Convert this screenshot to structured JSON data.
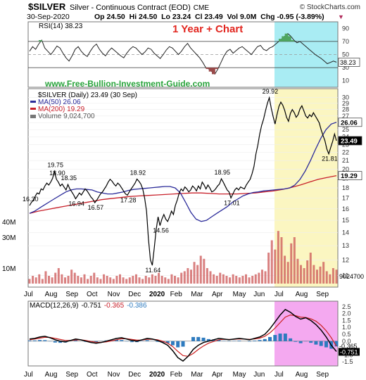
{
  "header": {
    "symbol": "$SILVER",
    "description": "Silver - Continuous Contract (EOD)",
    "exchange": "CME",
    "brand": "© StockCharts.com",
    "date": "30-Sep-2020",
    "quote": "Op 24.50  Hi 24.50  Lo 23.24  Cl 23.49  Vol 9.0M  Chg -0.95 (-3.89%)",
    "chg_arrow": "▼"
  },
  "annotations": {
    "headline": "1 Year + Chart",
    "website": "www.Free-Bullion-Investment-Guide.com"
  },
  "colors": {
    "price": "#000000",
    "ma50": "#2b2b9a",
    "ma200": "#c8202a",
    "volume": "#cc5555",
    "highlight_yellow": "#fbf6c1",
    "highlight_cyan": "#a9ecf3",
    "highlight_pink": "#f4a9f0",
    "rsi_fill": "#4fa560",
    "macd_hist": "#2e7bbf",
    "signal": "#cc1f1f",
    "headline": "#e2261f",
    "website": "#27a33a"
  },
  "chart_data": [
    {
      "type": "line",
      "panel": "RSI",
      "legend": [
        "RSI(14) 38.23"
      ],
      "current": 38.23,
      "ylim": [
        0,
        100
      ],
      "yticks": [
        10,
        30,
        50,
        70,
        90
      ],
      "ref_lines": [
        30,
        50,
        70
      ],
      "points": [
        55,
        62,
        58,
        66,
        72,
        60,
        55,
        50,
        56,
        63,
        60,
        52,
        45,
        40,
        48,
        58,
        62,
        55,
        50,
        47,
        55,
        62,
        66,
        58,
        52,
        48,
        55,
        60,
        56,
        52,
        48,
        45,
        52,
        58,
        62,
        60,
        55,
        50,
        54,
        60,
        58,
        52,
        48,
        44,
        50,
        57,
        62,
        60,
        55,
        50,
        55,
        62,
        67,
        60,
        55,
        50,
        45,
        38,
        30,
        28,
        24,
        20,
        28,
        38,
        48,
        55,
        58,
        52,
        56,
        60,
        62,
        58,
        54,
        50,
        56,
        62,
        64,
        58,
        56,
        60,
        62,
        66,
        70,
        74,
        78,
        82,
        78,
        72,
        68,
        70,
        66,
        62,
        58,
        54,
        50,
        47,
        44,
        40,
        36,
        38,
        40,
        38.23
      ]
    },
    {
      "type": "line",
      "panel": "Price",
      "title": "$SILVER (Daily) 23.49 (30 Sep)",
      "x_ticks": [
        "Jul",
        "Aug",
        "Sep",
        "Oct",
        "Nov",
        "Dec",
        "2020",
        "Feb",
        "Mar",
        "Apr",
        "May",
        "Jun",
        "Jul",
        "Aug",
        "Sep"
      ],
      "ylim": [
        10.5,
        31
      ],
      "yticks": [
        11,
        12,
        13,
        14,
        15,
        16,
        17,
        18,
        19,
        20,
        21,
        22,
        23,
        24,
        25,
        26,
        27,
        28,
        29,
        30
      ],
      "price": [
        16.3,
        16.6,
        16.8,
        17.2,
        17.5,
        17.4,
        17.9,
        17.8,
        18.2,
        18.5,
        18.3,
        18.6,
        19.0,
        19.75,
        18.9,
        18.6,
        18.2,
        18.4,
        18.1,
        17.8,
        18.35,
        17.9,
        17.6,
        17.3,
        16.94,
        17.2,
        17.5,
        17.3,
        17.6,
        17.9,
        17.7,
        17.4,
        17.1,
        16.9,
        16.57,
        16.8,
        17.1,
        17.4,
        17.6,
        17.9,
        18.2,
        18.6,
        18.9,
        18.7,
        18.4,
        18.2,
        18.5,
        18.3,
        18.0,
        17.7,
        17.4,
        17.28,
        17.6,
        17.9,
        18.2,
        18.5,
        18.92,
        18.7,
        18.4,
        17.9,
        17.0,
        15.8,
        13.5,
        12.0,
        11.64,
        12.8,
        14.2,
        15.3,
        14.56,
        15.1,
        15.5,
        15.1,
        14.9,
        15.3,
        15.8,
        15.5,
        16.3,
        16.8,
        17.5,
        17.9,
        17.7,
        18.1,
        17.9,
        17.6,
        17.8,
        18.2,
        18.0,
        17.7,
        18.2,
        17.9,
        18.6,
        18.3,
        17.9,
        18.3,
        18.0,
        17.6,
        17.7,
        17.9,
        18.2,
        18.4,
        18.95,
        18.6,
        18.2,
        17.8,
        17.6,
        17.01,
        17.4,
        17.8,
        18.0,
        17.8,
        18.1,
        18.0,
        17.9,
        18.3,
        18.6,
        18.9,
        19.5,
        20.3,
        21.8,
        22.9,
        24.4,
        25.6,
        26.5,
        27.8,
        29.0,
        29.92,
        28.2,
        26.9,
        25.8,
        27.2,
        28.5,
        29.2,
        28.7,
        27.9,
        26.8,
        26.2,
        27.4,
        28.0,
        27.5,
        26.8,
        27.2,
        28.1,
        28.6,
        27.8,
        27.0,
        26.7,
        27.2,
        26.9,
        27.5,
        27.0,
        26.5,
        26.0,
        25.0,
        24.2,
        23.5,
        22.4,
        21.81,
        22.6,
        23.4,
        24.4,
        23.49
      ],
      "ma50": [
        15.6,
        15.8,
        16.1,
        16.4,
        16.7,
        17.0,
        17.3,
        17.6,
        17.8,
        17.9,
        17.9,
        17.85,
        17.8,
        17.6,
        17.5,
        17.4,
        17.4,
        17.5,
        17.6,
        17.75,
        17.85,
        17.9,
        17.95,
        18.0,
        18.05,
        18.1,
        18.15,
        18.15,
        18.0,
        17.5,
        16.6,
        15.7,
        15.1,
        14.9,
        15.0,
        15.3,
        15.6,
        15.9,
        16.2,
        16.6,
        16.9,
        17.2,
        17.4,
        17.55,
        17.6,
        17.7,
        17.75,
        17.8,
        17.85,
        17.9,
        18.0,
        18.3,
        18.9,
        19.8,
        21.0,
        22.4,
        23.8,
        25.0,
        25.8,
        26.06
      ],
      "ma200": [
        15.6,
        15.8,
        15.95,
        16.1,
        16.25,
        16.4,
        16.55,
        16.7,
        16.85,
        16.95,
        17.05,
        17.15,
        17.2,
        17.25,
        17.3,
        17.35,
        17.4,
        17.45,
        17.5,
        17.5,
        17.45,
        17.4,
        17.4,
        17.4,
        17.45,
        17.5,
        17.6,
        17.7,
        17.85,
        18.05,
        18.3,
        18.6,
        18.9,
        19.1,
        19.29
      ],
      "labels": [
        "19.75",
        "18.35",
        "16.94",
        "16.57",
        "18.90",
        "17.28",
        "18.92",
        "16.30",
        "11.64",
        "14.56",
        "18.95",
        "17.01",
        "29.92",
        "21.81"
      ],
      "legend": [
        "MA(50) 26.06",
        "MA(200) 19.29",
        "Volume 9,024,700"
      ],
      "price_tags": [
        "23.49",
        "26.06",
        "19.29"
      ],
      "volume": {
        "yticks_label": [
          "10M",
          "30M",
          "40M"
        ],
        "current_tag": "9024700",
        "values_m": [
          3,
          5,
          4,
          6,
          3,
          8,
          5,
          4,
          7,
          10,
          6,
          4,
          5,
          9,
          7,
          5,
          4,
          6,
          3,
          5,
          7,
          4,
          3,
          6,
          5,
          4,
          3,
          5,
          6,
          4,
          3,
          4,
          5,
          6,
          4,
          3,
          5,
          4,
          6,
          5,
          7,
          5,
          4,
          3,
          6,
          5,
          4,
          7,
          8,
          10,
          9,
          14,
          12,
          18,
          16,
          10,
          8,
          6,
          5,
          7,
          6,
          5,
          4,
          6,
          5,
          4,
          5,
          6,
          4,
          5,
          6,
          7,
          9,
          8,
          20,
          28,
          22,
          34,
          30,
          18,
          14,
          26,
          30,
          16,
          12,
          10,
          15,
          20,
          12,
          9,
          11,
          14,
          8,
          6,
          10,
          9
        ]
      }
    },
    {
      "type": "line",
      "panel": "MACD",
      "legend": [
        "MACD(12,26,9)",
        "-0.751",
        "-0.365",
        "-0.386"
      ],
      "ylim": [
        -1.7,
        2.7
      ],
      "yticks": [
        "2.5",
        "2.0",
        "1.5",
        "1.0",
        "0.5",
        "0.0",
        "-0.5",
        "-1.0",
        "-1.5"
      ],
      "tags": [
        "-0.365",
        "-0.751"
      ],
      "macd": [
        0.15,
        0.2,
        0.3,
        0.35,
        0.25,
        0.1,
        0.0,
        -0.05,
        0.05,
        0.15,
        0.1,
        0.0,
        -0.1,
        -0.15,
        -0.1,
        0.0,
        0.1,
        0.2,
        0.25,
        0.15,
        0.05,
        0.0,
        0.1,
        0.2,
        0.15,
        0.05,
        -0.1,
        -0.3,
        -0.7,
        -1.2,
        -1.45,
        -1.1,
        -0.6,
        -0.3,
        -0.1,
        0.0,
        0.1,
        0.2,
        0.15,
        0.1,
        0.15,
        0.2,
        0.15,
        0.1,
        0.2,
        0.3,
        0.5,
        0.9,
        1.4,
        1.9,
        2.3,
        2.1,
        1.8,
        1.6,
        1.7,
        1.5,
        1.2,
        0.8,
        0.3,
        -0.3,
        -0.751
      ],
      "signal": [
        0.1,
        0.15,
        0.22,
        0.28,
        0.27,
        0.2,
        0.12,
        0.05,
        0.05,
        0.08,
        0.1,
        0.05,
        -0.02,
        -0.08,
        -0.09,
        -0.05,
        0.02,
        0.1,
        0.17,
        0.17,
        0.12,
        0.07,
        0.08,
        0.13,
        0.14,
        0.1,
        0.0,
        -0.15,
        -0.4,
        -0.75,
        -1.05,
        -1.1,
        -0.9,
        -0.6,
        -0.35,
        -0.15,
        -0.02,
        0.1,
        0.13,
        0.12,
        0.13,
        0.16,
        0.15,
        0.13,
        0.16,
        0.22,
        0.35,
        0.6,
        0.95,
        1.35,
        1.75,
        1.9,
        1.85,
        1.75,
        1.72,
        1.62,
        1.45,
        1.15,
        0.75,
        0.25,
        -0.365
      ]
    }
  ]
}
